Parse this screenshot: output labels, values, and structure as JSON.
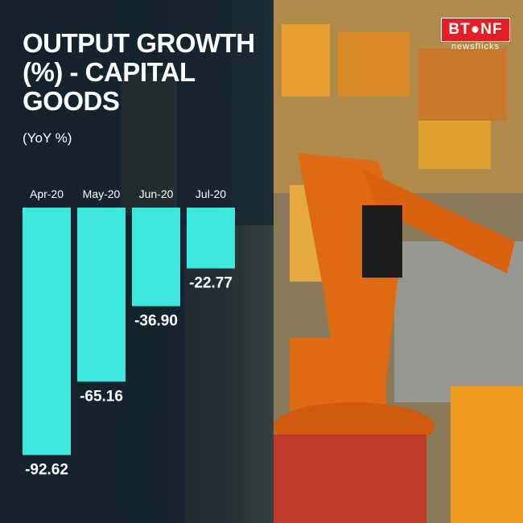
{
  "header": {
    "title": "OUTPUT GROWTH (%) - CAPITAL GOODS",
    "subtitle": "(YoY %)"
  },
  "logo": {
    "brand": "BT●NF",
    "sub": "newsflicks",
    "color": "#e31e24"
  },
  "colors": {
    "bar": "#3ee7de",
    "text": "#ffffff"
  },
  "chart_data": {
    "type": "bar",
    "title": "OUTPUT GROWTH (%) - CAPITAL GOODS",
    "ylabel": "(YoY %)",
    "categories": [
      "Apr-20",
      "May-20",
      "Jun-20",
      "Jul-20"
    ],
    "values": [
      -92.62,
      -65.16,
      -36.9,
      -22.77
    ],
    "value_labels": [
      "-92.62",
      "-65.16",
      "-36.90",
      "-22.77"
    ],
    "ylim": [
      -100,
      0
    ],
    "grid": false,
    "legend": "none"
  }
}
